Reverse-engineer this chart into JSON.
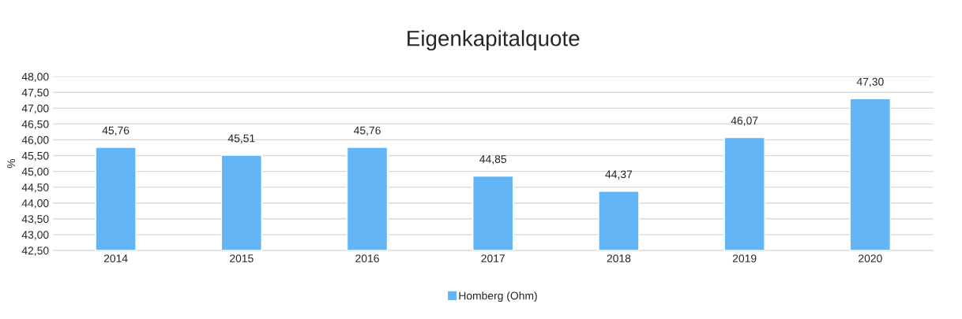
{
  "chart_data": {
    "type": "bar",
    "title": "Eigenkapitalquote",
    "ylabel": "%",
    "categories": [
      "2014",
      "2015",
      "2016",
      "2017",
      "2018",
      "2019",
      "2020"
    ],
    "series": [
      {
        "name": "Homberg (Ohm)",
        "color": "#63b5f5",
        "values": [
          45.76,
          45.51,
          45.76,
          44.85,
          44.37,
          46.07,
          47.3
        ],
        "value_labels": [
          "45,76",
          "45,51",
          "45,76",
          "44,85",
          "44,37",
          "46,07",
          "47,30"
        ]
      }
    ],
    "ylim": [
      42.5,
      48.0
    ],
    "yticks": [
      {
        "value": 42.5,
        "label": "42,50"
      },
      {
        "value": 43.0,
        "label": "43,00"
      },
      {
        "value": 43.5,
        "label": "43,50"
      },
      {
        "value": 44.0,
        "label": "44,00"
      },
      {
        "value": 44.5,
        "label": "44,50"
      },
      {
        "value": 45.0,
        "label": "45,00"
      },
      {
        "value": 45.5,
        "label": "45,50"
      },
      {
        "value": 46.0,
        "label": "46,00"
      },
      {
        "value": 46.5,
        "label": "46,50"
      },
      {
        "value": 47.0,
        "label": "47,00"
      },
      {
        "value": 47.5,
        "label": "47,50"
      },
      {
        "value": 48.0,
        "label": "48,00"
      }
    ],
    "grid": "y",
    "legend": "bottom"
  }
}
